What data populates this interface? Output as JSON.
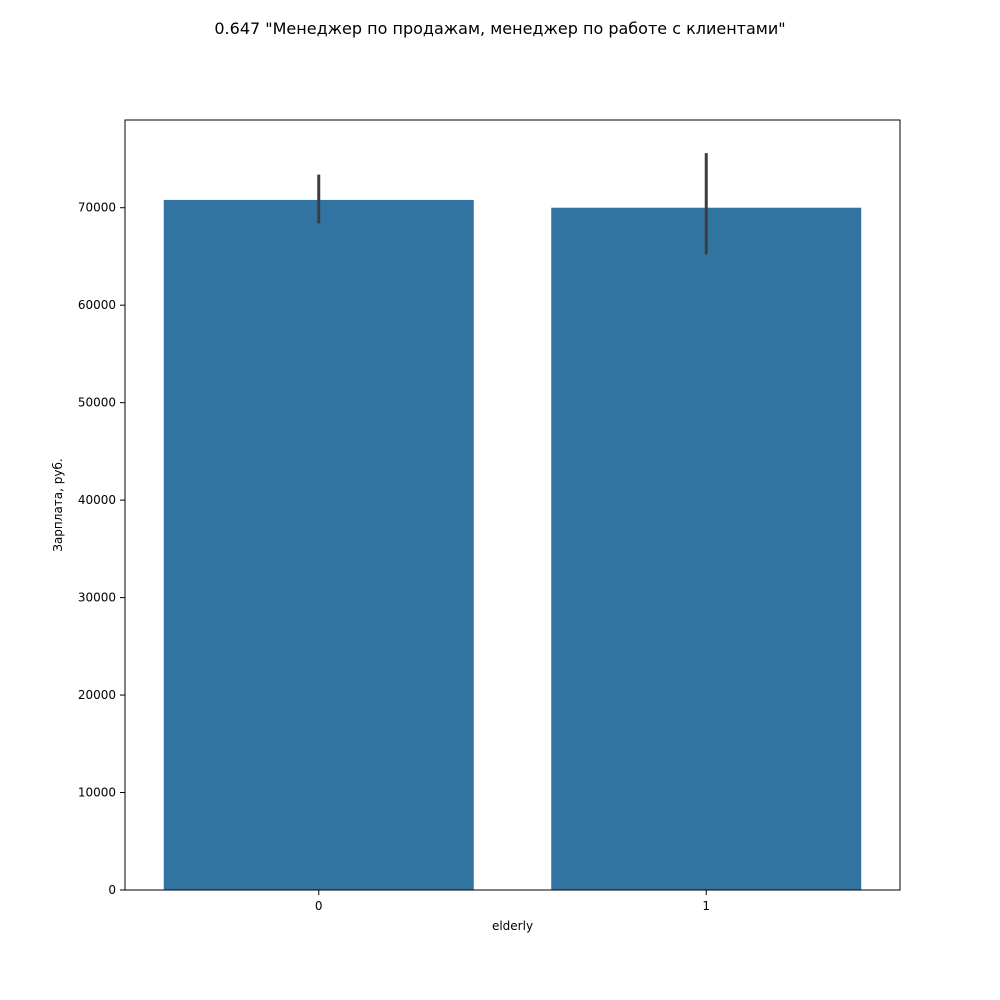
{
  "chart_data": {
    "type": "bar",
    "title": "0.647 \"Менеджер по продажам, менеджер по работе с клиентами\"",
    "xlabel": "elderly",
    "ylabel": "Зарплата, руб.",
    "categories": [
      "0",
      "1"
    ],
    "values": [
      70800,
      70000
    ],
    "error_bars": [
      {
        "low": 68400,
        "high": 73400
      },
      {
        "low": 65200,
        "high": 75600
      }
    ],
    "ylim": [
      0,
      79000
    ],
    "yticks": [
      0,
      10000,
      20000,
      30000,
      40000,
      50000,
      60000,
      70000
    ],
    "grid": false,
    "legend": "none",
    "colors": {
      "bar": "#3274a1",
      "error_bar": "#3d3d3d",
      "axis": "#000000"
    }
  }
}
